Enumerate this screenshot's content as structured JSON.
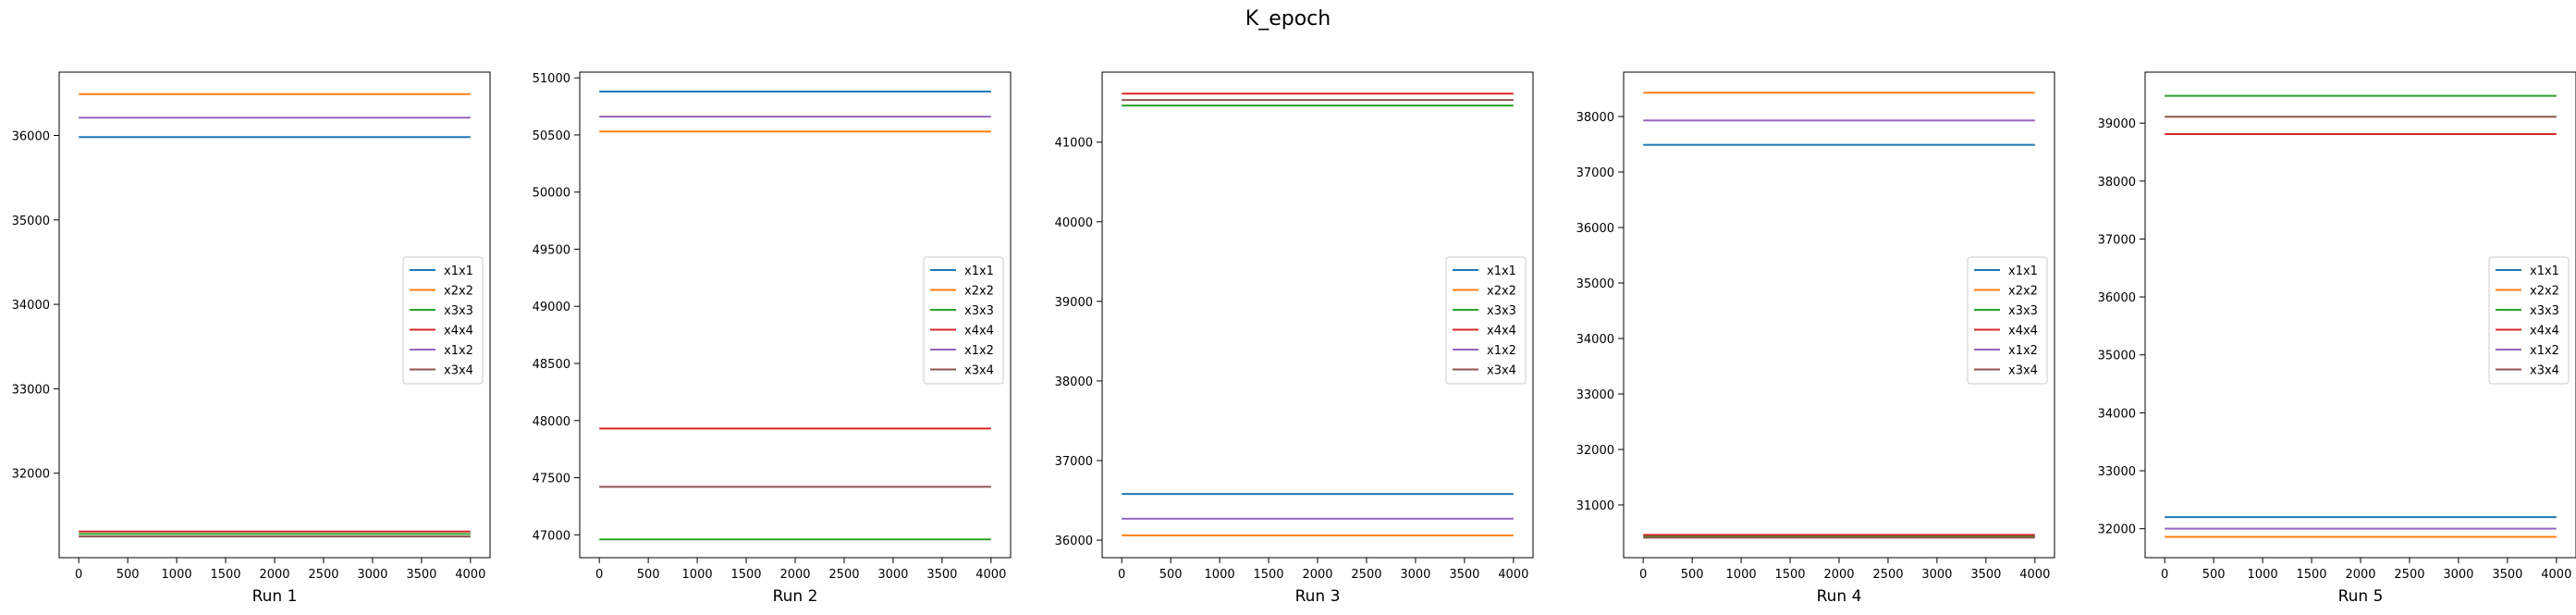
{
  "suptitle": "K_epoch",
  "chart_data": [
    {
      "type": "line",
      "xlabel": "Run 1",
      "x": [
        0,
        4000
      ],
      "xticks": [
        0,
        500,
        1000,
        1500,
        2000,
        2500,
        3000,
        3500,
        4000
      ],
      "ylim": [
        31000,
        36750
      ],
      "yticks": [
        32000,
        33000,
        34000,
        35000,
        36000
      ],
      "series": [
        {
          "name": "x1x1",
          "color": "#1f77b4",
          "values": [
            35980,
            35980
          ]
        },
        {
          "name": "x2x2",
          "color": "#ff7f0e",
          "values": [
            36490,
            36490
          ]
        },
        {
          "name": "x3x3",
          "color": "#2ca02c",
          "values": [
            31280,
            31280
          ]
        },
        {
          "name": "x4x4",
          "color": "#d62728",
          "values": [
            31310,
            31310
          ]
        },
        {
          "name": "x1x2",
          "color": "#9467bd",
          "values": [
            36210,
            36210
          ]
        },
        {
          "name": "x3x4",
          "color": "#8c564b",
          "values": [
            31250,
            31250
          ]
        }
      ],
      "legend": "center-right"
    },
    {
      "type": "line",
      "xlabel": "Run 2",
      "x": [
        0,
        4000
      ],
      "xticks": [
        0,
        500,
        1000,
        1500,
        2000,
        2500,
        3000,
        3500,
        4000
      ],
      "ylim": [
        46800,
        51050
      ],
      "yticks": [
        47000,
        47500,
        48000,
        48500,
        49000,
        49500,
        50000,
        50500,
        51000
      ],
      "series": [
        {
          "name": "x1x1",
          "color": "#1f77b4",
          "values": [
            50880,
            50880
          ]
        },
        {
          "name": "x2x2",
          "color": "#ff7f0e",
          "values": [
            50530,
            50530
          ]
        },
        {
          "name": "x3x3",
          "color": "#2ca02c",
          "values": [
            46960,
            46960
          ]
        },
        {
          "name": "x4x4",
          "color": "#d62728",
          "values": [
            47930,
            47930
          ]
        },
        {
          "name": "x1x2",
          "color": "#9467bd",
          "values": [
            50660,
            50660
          ]
        },
        {
          "name": "x3x4",
          "color": "#8c564b",
          "values": [
            47420,
            47420
          ]
        }
      ],
      "legend": "center-right"
    },
    {
      "type": "line",
      "xlabel": "Run 3",
      "x": [
        0,
        4000
      ],
      "xticks": [
        0,
        500,
        1000,
        1500,
        2000,
        2500,
        3000,
        3500,
        4000
      ],
      "ylim": [
        35780,
        41880
      ],
      "yticks": [
        36000,
        37000,
        38000,
        39000,
        40000,
        41000
      ],
      "series": [
        {
          "name": "x1x1",
          "color": "#1f77b4",
          "values": [
            36580,
            36580
          ]
        },
        {
          "name": "x2x2",
          "color": "#ff7f0e",
          "values": [
            36060,
            36060
          ]
        },
        {
          "name": "x3x3",
          "color": "#2ca02c",
          "values": [
            41460,
            41460
          ]
        },
        {
          "name": "x4x4",
          "color": "#d62728",
          "values": [
            41610,
            41610
          ]
        },
        {
          "name": "x1x2",
          "color": "#9467bd",
          "values": [
            36270,
            36270
          ]
        },
        {
          "name": "x3x4",
          "color": "#8c564b",
          "values": [
            41530,
            41530
          ]
        }
      ],
      "legend": "center-right"
    },
    {
      "type": "line",
      "xlabel": "Run 4",
      "x": [
        0,
        4000
      ],
      "xticks": [
        0,
        500,
        1000,
        1500,
        2000,
        2500,
        3000,
        3500,
        4000
      ],
      "ylim": [
        30050,
        38800
      ],
      "yticks": [
        31000,
        32000,
        33000,
        34000,
        35000,
        36000,
        37000,
        38000
      ],
      "series": [
        {
          "name": "x1x1",
          "color": "#1f77b4",
          "values": [
            37490,
            37490
          ]
        },
        {
          "name": "x2x2",
          "color": "#ff7f0e",
          "values": [
            38430,
            38430
          ]
        },
        {
          "name": "x3x3",
          "color": "#2ca02c",
          "values": [
            30440,
            30440
          ]
        },
        {
          "name": "x4x4",
          "color": "#d62728",
          "values": [
            30460,
            30460
          ]
        },
        {
          "name": "x1x2",
          "color": "#9467bd",
          "values": [
            37930,
            37930
          ]
        },
        {
          "name": "x3x4",
          "color": "#8c564b",
          "values": [
            30410,
            30410
          ]
        }
      ],
      "legend": "center-right"
    },
    {
      "type": "line",
      "xlabel": "Run 5",
      "x": [
        0,
        4000
      ],
      "xticks": [
        0,
        500,
        1000,
        1500,
        2000,
        2500,
        3000,
        3500,
        4000
      ],
      "ylim": [
        31500,
        39880
      ],
      "yticks": [
        32000,
        33000,
        34000,
        35000,
        36000,
        37000,
        38000,
        39000
      ],
      "series": [
        {
          "name": "x1x1",
          "color": "#1f77b4",
          "values": [
            32200,
            32200
          ]
        },
        {
          "name": "x2x2",
          "color": "#ff7f0e",
          "values": [
            31860,
            31860
          ]
        },
        {
          "name": "x3x3",
          "color": "#2ca02c",
          "values": [
            39470,
            39470
          ]
        },
        {
          "name": "x4x4",
          "color": "#d62728",
          "values": [
            38810,
            38810
          ]
        },
        {
          "name": "x1x2",
          "color": "#9467bd",
          "values": [
            32000,
            32000
          ]
        },
        {
          "name": "x3x4",
          "color": "#8c564b",
          "values": [
            39110,
            39110
          ]
        }
      ],
      "legend": "center-right"
    }
  ]
}
